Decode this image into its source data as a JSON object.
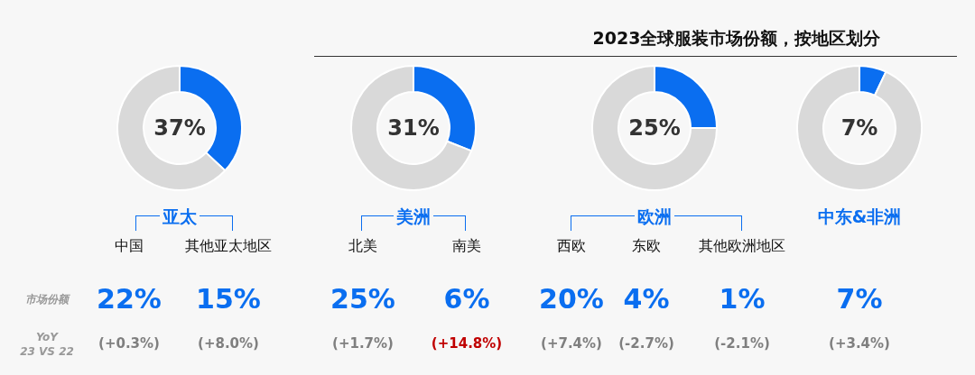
{
  "chart_data": [
    {
      "type": "donut",
      "title": "亚太",
      "categories": [
        null,
        null
      ],
      "values": [
        37,
        63
      ],
      "colors": [
        "#0a6ef0",
        "#d9d9d9"
      ],
      "annotations": [
        "37%"
      ]
    },
    {
      "type": "donut",
      "title": "美洲",
      "categories": [
        null,
        null
      ],
      "values": [
        31,
        69
      ],
      "colors": [
        "#0a6ef0",
        "#d9d9d9"
      ],
      "annotations": [
        "31%"
      ]
    },
    {
      "type": "donut",
      "title": "欧洲",
      "categories": [
        null,
        null
      ],
      "values": [
        25,
        75
      ],
      "colors": [
        "#0a6ef0",
        "#d9d9d9"
      ],
      "annotations": [
        "25%"
      ]
    },
    {
      "type": "donut",
      "title": "中东&非洲",
      "categories": [
        null,
        null
      ],
      "values": [
        7,
        93
      ],
      "colors": [
        "#0a6ef0",
        "#d9d9d9"
      ],
      "annotations": [
        "7%"
      ]
    },
    {
      "type": "other",
      "title": "2023全球服装市场份额，按地区划分",
      "annotations": [
        "中国",
        "其他亚太地区",
        "北美",
        "南美",
        "西欧",
        "东欧",
        "其他欧洲地区",
        "市场份额",
        "YoY\n23 VS 22",
        "22%",
        "15%",
        "25%",
        "6%",
        "20%",
        "4%",
        "1%",
        "7%",
        "(+0.3%)",
        "(+8.0%)",
        "(+1.7%)",
        "(+14.8%)",
        "(+7.4%)",
        "(-2.7%)",
        "(-2.1%)",
        "(+3.4%)"
      ],
      "colors": [
        "#111111",
        "#111111",
        "#111111",
        "#111111",
        "#111111",
        "#111111",
        "#111111",
        "#999999",
        "#999999",
        "#0a6ef0",
        "#0a6ef0",
        "#0a6ef0",
        "#0a6ef0",
        "#0a6ef0",
        "#0a6ef0",
        "#0a6ef0",
        "#0a6ef0",
        "#7f7f7f",
        "#7f7f7f",
        "#7f7f7f",
        "#c00000",
        "#7f7f7f",
        "#7f7f7f",
        "#7f7f7f",
        "#7f7f7f"
      ]
    }
  ]
}
